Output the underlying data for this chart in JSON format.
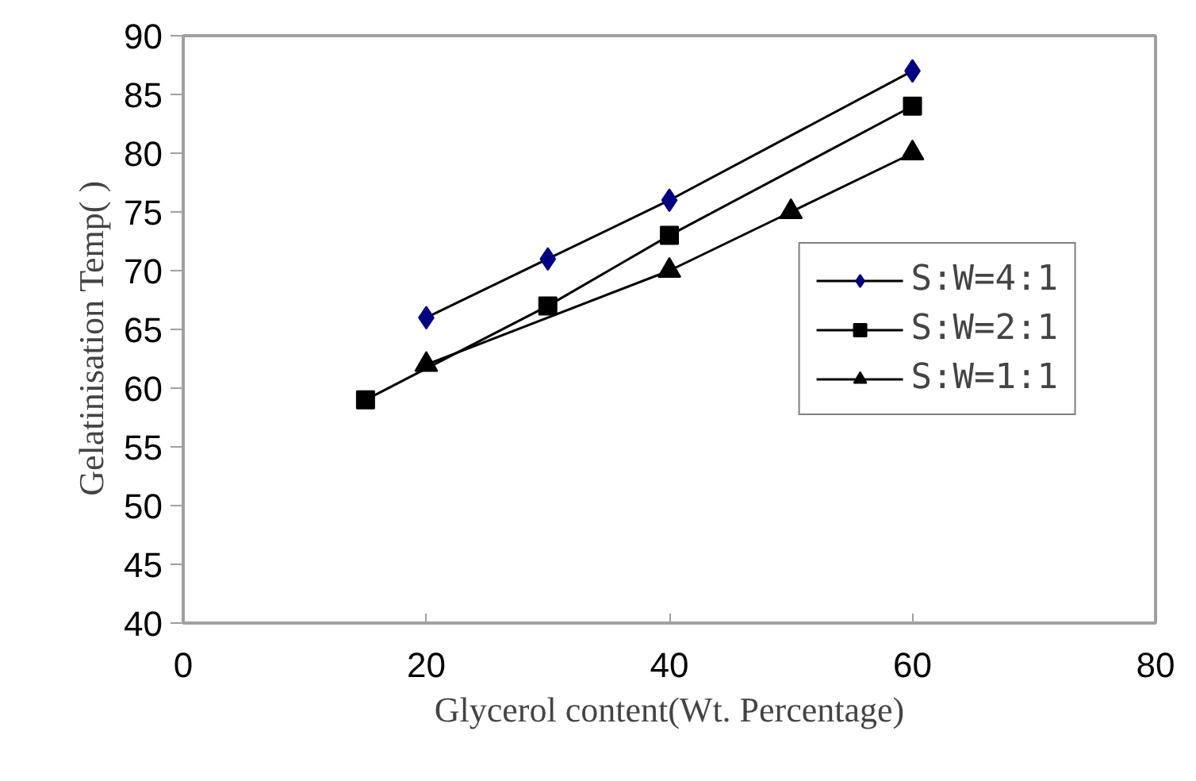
{
  "chart_data": {
    "type": "line",
    "xlabel": "Glycerol content(Wt. Percentage)",
    "ylabel": "Gelatinisation Temp(   )",
    "xlim": [
      0,
      80
    ],
    "xticks": [
      0,
      20,
      40,
      60,
      80
    ],
    "ylim": [
      40,
      90
    ],
    "yticks": [
      40,
      45,
      50,
      55,
      60,
      65,
      70,
      75,
      80,
      85,
      90
    ],
    "grid": false,
    "legend": "right",
    "series": [
      {
        "name": "S:W=4:1",
        "color": "#000080",
        "marker": "diamond",
        "x": [
          20,
          30,
          40,
          60
        ],
        "values": [
          66,
          71,
          76,
          87
        ]
      },
      {
        "name": "S:W=2:1",
        "color": "#000000",
        "marker": "square",
        "x": [
          15,
          30,
          40,
          60
        ],
        "values": [
          59,
          67,
          73,
          84
        ]
      },
      {
        "name": "S:W=1:1",
        "color": "#000000",
        "marker": "triangle",
        "x": [
          20,
          40,
          50,
          60
        ],
        "values": [
          62,
          70,
          75,
          80
        ]
      }
    ]
  }
}
